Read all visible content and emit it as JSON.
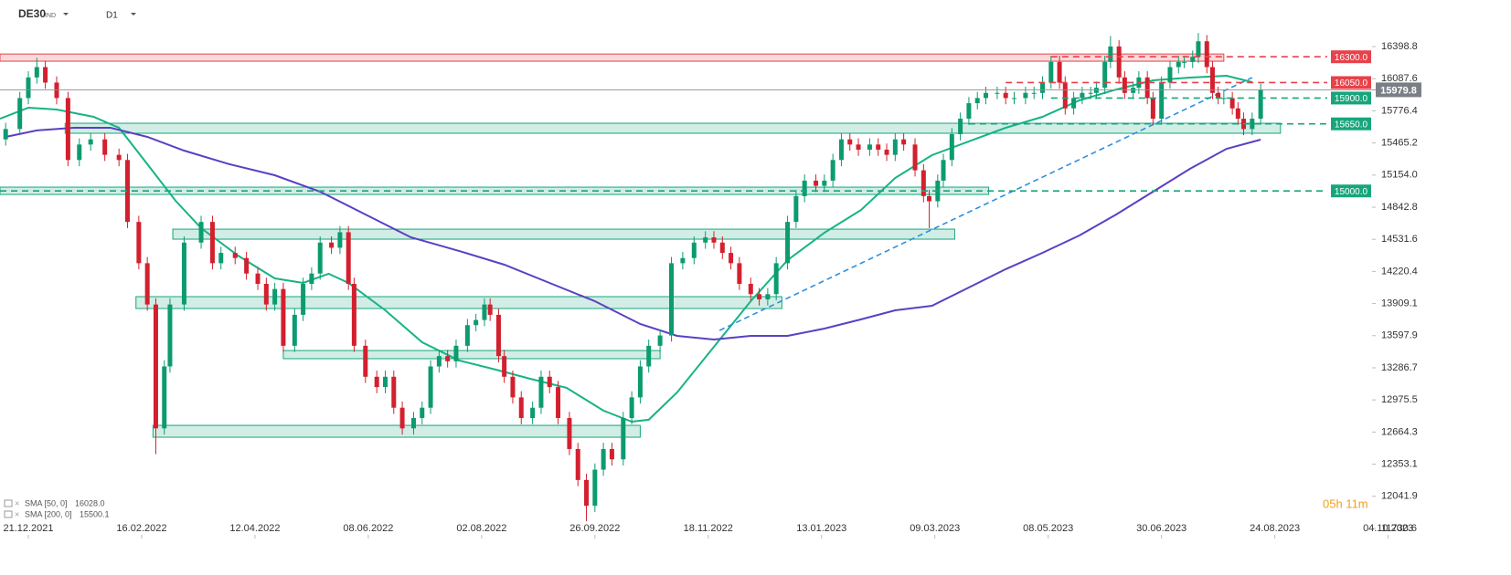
{
  "header": {
    "symbol": "DE30",
    "symbol_suffix": "IND",
    "timeframe": "D1"
  },
  "timer": "05h 11m",
  "chart_data": {
    "type": "candlestick",
    "up_color": "#0c9b6f",
    "down_color": "#d3202e",
    "xlim": [
      -10,
      474
    ],
    "ylim": [
      11633,
      16850
    ],
    "xticks": [
      {
        "value": 0,
        "label": "21.12.2021"
      },
      {
        "value": 40,
        "label": "16.02.2022"
      },
      {
        "value": 80,
        "label": "12.04.2022"
      },
      {
        "value": 120,
        "label": "08.06.2022"
      },
      {
        "value": 160,
        "label": "02.08.2022"
      },
      {
        "value": 200,
        "label": "26.09.2022"
      },
      {
        "value": 240,
        "label": "18.11.2022"
      },
      {
        "value": 280,
        "label": "13.01.2023"
      },
      {
        "value": 320,
        "label": "09.03.2023"
      },
      {
        "value": 360,
        "label": "08.05.2023"
      },
      {
        "value": 400,
        "label": "30.06.2023"
      },
      {
        "value": 440,
        "label": "24.08.2023"
      },
      {
        "value": 480,
        "label": "04.10.2023"
      }
    ],
    "yticks": [
      16398.8,
      16087.6,
      15776.4,
      15465.2,
      {
        "value": 15154,
        "label": "15154.0"
      },
      14842.8,
      14531.6,
      14220.4,
      13909.1,
      13597.9,
      13286.7,
      12975.5,
      12664.3,
      12353.1,
      12041.9,
      11730.6
    ],
    "x": [
      -8,
      -3,
      0,
      3,
      6,
      10,
      14,
      18,
      22,
      27,
      32,
      35,
      39,
      42,
      45,
      48,
      50,
      55,
      61,
      65,
      68,
      73,
      77,
      81,
      84,
      87,
      90,
      94,
      97,
      100,
      103,
      107,
      110,
      113,
      115,
      119,
      123,
      126,
      129,
      132,
      136,
      139,
      142,
      145,
      148,
      151,
      155,
      158,
      161,
      163,
      166,
      168,
      171,
      174,
      178,
      181,
      184,
      187,
      191,
      194,
      197,
      200,
      203,
      206,
      210,
      213,
      216,
      219,
      223,
      227,
      231,
      235,
      239,
      242,
      245,
      248,
      251,
      255,
      258,
      261,
      264,
      268,
      271,
      274,
      278,
      281,
      284,
      287,
      290,
      293,
      297,
      300,
      303,
      306,
      309,
      313,
      316,
      318,
      321,
      323,
      326,
      329,
      332,
      335,
      338,
      342,
      345,
      348,
      352,
      355,
      358,
      361,
      364,
      366,
      369,
      372,
      375,
      377,
      380,
      382,
      385,
      387,
      390,
      392,
      395,
      397,
      400,
      403,
      406,
      408,
      411,
      413,
      416,
      418,
      420,
      422,
      425,
      427,
      429,
      432,
      435
    ],
    "open": [
      15500,
      15600,
      15900,
      16100,
      16200,
      16050,
      15900,
      15300,
      15450,
      15500,
      15350,
      15300,
      14700,
      14300,
      13900,
      12700,
      13300,
      13900,
      14500,
      14700,
      14300,
      14400,
      14350,
      14200,
      14100,
      13900,
      14050,
      13500,
      13800,
      14100,
      14200,
      14500,
      14450,
      14600,
      14100,
      13500,
      13200,
      13100,
      13200,
      12900,
      12700,
      12800,
      12900,
      13300,
      13400,
      13350,
      13500,
      13700,
      13750,
      13900,
      13800,
      13400,
      13200,
      13000,
      12800,
      12900,
      13200,
      13100,
      12800,
      12500,
      12200,
      11950,
      12300,
      12500,
      12400,
      12800,
      13000,
      13300,
      13500,
      13600,
      14300,
      14350,
      14500,
      14550,
      14500,
      14400,
      14300,
      14100,
      14000,
      13950,
      14000,
      14300,
      14700,
      14950,
      15100,
      15050,
      15100,
      15300,
      15500,
      15450,
      15400,
      15450,
      15400,
      15350,
      15500,
      15450,
      15200,
      14950,
      14900,
      15100,
      15300,
      15550,
      15700,
      15850,
      15900,
      15950,
      15950,
      15900,
      15900,
      15950,
      15950,
      16050,
      16250,
      16050,
      15800,
      15900,
      15950,
      15950,
      16000,
      16250,
      16400,
      16100,
      15950,
      16000,
      16100,
      15900,
      15700,
      16050,
      16200,
      16250,
      16250,
      16300,
      16450,
      16200,
      15950,
      15900,
      15900,
      15800,
      15700,
      15600,
      15700
    ],
    "high": [
      15660,
      15960,
      16160,
      16290,
      16260,
      16110,
      15960,
      15510,
      15560,
      15560,
      15410,
      15360,
      14760,
      14360,
      13960,
      13360,
      13960,
      14560,
      14760,
      14760,
      14460,
      14460,
      14410,
      14260,
      14160,
      14110,
      14110,
      13860,
      14160,
      14260,
      14560,
      14560,
      14660,
      14660,
      14160,
      13560,
      13260,
      13260,
      13260,
      12960,
      12860,
      12960,
      13360,
      13460,
      13460,
      13560,
      13760,
      13810,
      13960,
      13960,
      13860,
      13460,
      13260,
      13060,
      12960,
      13260,
      13260,
      13160,
      12860,
      12560,
      12260,
      12360,
      12560,
      12560,
      12860,
      13060,
      13360,
      13560,
      13660,
      14360,
      14410,
      14560,
      14610,
      14610,
      14560,
      14460,
      14360,
      14160,
      14060,
      14060,
      14360,
      14760,
      15010,
      15160,
      15160,
      15160,
      15360,
      15560,
      15560,
      15510,
      15510,
      15510,
      15460,
      15560,
      15560,
      15510,
      15260,
      15010,
      15160,
      15360,
      15610,
      15760,
      15910,
      15960,
      16010,
      16010,
      16010,
      15960,
      16010,
      16010,
      16110,
      16310,
      16310,
      16110,
      15960,
      16010,
      16010,
      16060,
      16310,
      16500,
      16460,
      16160,
      16060,
      16160,
      16160,
      15960,
      16110,
      16260,
      16310,
      16310,
      16360,
      16530,
      16510,
      16260,
      16010,
      15960,
      15960,
      15860,
      15760,
      15760,
      16040
    ],
    "low": [
      15440,
      15540,
      15840,
      16040,
      15990,
      15840,
      15240,
      15240,
      15390,
      15290,
      15240,
      14640,
      14240,
      13840,
      12450,
      12640,
      13240,
      13840,
      14440,
      14240,
      14240,
      14290,
      14140,
      14040,
      13840,
      13840,
      13440,
      13440,
      13740,
      14040,
      14140,
      14390,
      14390,
      14040,
      13440,
      13140,
      13040,
      13040,
      12840,
      12640,
      12640,
      12740,
      12840,
      13240,
      13290,
      13290,
      13440,
      13640,
      13690,
      13740,
      13340,
      13140,
      12940,
      12740,
      12740,
      12840,
      13040,
      12740,
      12440,
      12140,
      11800,
      11890,
      12240,
      12340,
      12340,
      12740,
      12940,
      13240,
      13440,
      13540,
      14240,
      14290,
      14440,
      14440,
      14340,
      14240,
      14040,
      13940,
      13890,
      13890,
      13940,
      14240,
      14640,
      14890,
      14990,
      14990,
      15040,
      15240,
      15390,
      15340,
      15340,
      15340,
      15290,
      15290,
      15390,
      15140,
      14890,
      14640,
      14840,
      15040,
      15240,
      15490,
      15640,
      15790,
      15840,
      15890,
      15840,
      15840,
      15840,
      15890,
      15890,
      15990,
      15990,
      15740,
      15740,
      15840,
      15890,
      15890,
      15940,
      16190,
      16040,
      15890,
      15890,
      15940,
      15840,
      15640,
      15640,
      15990,
      16140,
      16190,
      16190,
      16240,
      16140,
      15890,
      15840,
      15840,
      15740,
      15640,
      15540,
      15540,
      15640
    ],
    "close": [
      15600,
      15900,
      16100,
      16200,
      16050,
      15900,
      15300,
      15450,
      15500,
      15350,
      15300,
      14700,
      14300,
      13900,
      12700,
      13300,
      13900,
      14500,
      14700,
      14300,
      14400,
      14350,
      14200,
      14100,
      13900,
      14050,
      13500,
      13800,
      14100,
      14200,
      14500,
      14450,
      14600,
      14100,
      13500,
      13200,
      13100,
      13200,
      12900,
      12700,
      12800,
      12900,
      13300,
      13400,
      13350,
      13500,
      13700,
      13750,
      13900,
      13800,
      13400,
      13200,
      13000,
      12800,
      12900,
      13200,
      13100,
      12800,
      12500,
      12200,
      11950,
      12300,
      12500,
      12400,
      12800,
      13000,
      13300,
      13500,
      13600,
      14300,
      14350,
      14500,
      14550,
      14500,
      14400,
      14300,
      14100,
      14000,
      13950,
      14000,
      14300,
      14700,
      14950,
      15100,
      15050,
      15100,
      15300,
      15500,
      15450,
      15400,
      15450,
      15400,
      15350,
      15500,
      15450,
      15200,
      14950,
      14900,
      15100,
      15300,
      15550,
      15700,
      15850,
      15900,
      15950,
      15950,
      15900,
      15900,
      15950,
      15950,
      16050,
      16250,
      16050,
      15800,
      15900,
      15950,
      15950,
      16000,
      16250,
      16400,
      16100,
      15950,
      16000,
      16100,
      15900,
      15700,
      16050,
      16200,
      16250,
      16250,
      16300,
      16450,
      16200,
      15950,
      15900,
      15900,
      15800,
      15700,
      15600,
      15700,
      15980
    ],
    "zones": [
      {
        "x": [
          -10,
          422
        ],
        "y": [
          16257,
          16327
        ],
        "color": "#e8414a"
      },
      {
        "x": [
          13,
          442
        ],
        "y": [
          15559,
          15656
        ],
        "color": "#17a67c"
      },
      {
        "x": [
          -10,
          339
        ],
        "y": [
          14966,
          15037
        ],
        "color": "#17a67c"
      },
      {
        "x": [
          51,
          327
        ],
        "y": [
          14533,
          14630
        ],
        "color": "#17a67c"
      },
      {
        "x": [
          38,
          266
        ],
        "y": [
          13861,
          13976
        ],
        "color": "#17a67c"
      },
      {
        "x": [
          90,
          223
        ],
        "y": [
          13375,
          13454
        ],
        "color": "#17a67c"
      },
      {
        "x": [
          44,
          216
        ],
        "y": [
          12614,
          12729
        ],
        "color": "#17a67c"
      }
    ],
    "levels": [
      {
        "price": 16300,
        "label": "16300.0",
        "color": "#e8414a",
        "x_start": 361
      },
      {
        "price": 16050,
        "label": "16050.0",
        "color": "#e8414a",
        "x_start": 345
      },
      {
        "price": 15900,
        "label": "15900.0",
        "color": "#17a67c",
        "x_start": 361
      },
      {
        "price": 15650,
        "label": "15650.0",
        "color": "#17a67c",
        "x_start": 332
      },
      {
        "price": 15000,
        "label": "15000.0",
        "color": "#17a67c",
        "x_start": -10
      }
    ],
    "last_price": 15979.8,
    "trendline": {
      "color": "#2d8fe0",
      "x": [
        244,
        432
      ],
      "values": [
        13649,
        16098
      ]
    },
    "sma": [
      {
        "name": "SMA [50, 0]",
        "legend_value": {
          "value": 16028,
          "label": "16028.0"
        },
        "color": "#16b383",
        "x": [
          -10,
          0,
          10,
          23,
          32,
          42,
          52,
          61,
          74,
          87,
          97,
          106,
          113,
          126,
          139,
          152,
          165,
          177,
          190,
          203,
          213,
          219,
          229,
          242,
          255,
          268,
          281,
          294,
          306,
          319,
          332,
          345,
          358,
          371,
          384,
          397,
          410,
          423,
          432
        ],
        "values": [
          15700,
          15807,
          15789,
          15718,
          15612,
          15259,
          14905,
          14640,
          14374,
          14153,
          14109,
          14198,
          14109,
          13844,
          13534,
          13358,
          13269,
          13181,
          13093,
          12872,
          12765,
          12783,
          13048,
          13490,
          13932,
          14330,
          14595,
          14816,
          15126,
          15347,
          15480,
          15612,
          15718,
          15877,
          15983,
          16072,
          16098,
          16116,
          16054
        ]
      },
      {
        "name": "SMA [200, 0]",
        "legend_value": {
          "value": 15500.1,
          "label": "15500.1"
        },
        "color": "#5b3fc4",
        "x": [
          -8,
          3,
          16,
          29,
          42,
          55,
          71,
          87,
          103,
          119,
          135,
          152,
          168,
          184,
          200,
          216,
          229,
          242,
          255,
          268,
          281,
          294,
          306,
          319,
          332,
          345,
          358,
          371,
          384,
          397,
          410,
          423,
          435
        ],
        "values": [
          15524,
          15586,
          15612,
          15612,
          15524,
          15391,
          15259,
          15152,
          14993,
          14772,
          14551,
          14419,
          14286,
          14109,
          13932,
          13711,
          13596,
          13561,
          13596,
          13596,
          13667,
          13756,
          13844,
          13888,
          14065,
          14242,
          14401,
          14569,
          14772,
          14993,
          15214,
          15409,
          15497
        ]
      }
    ]
  }
}
